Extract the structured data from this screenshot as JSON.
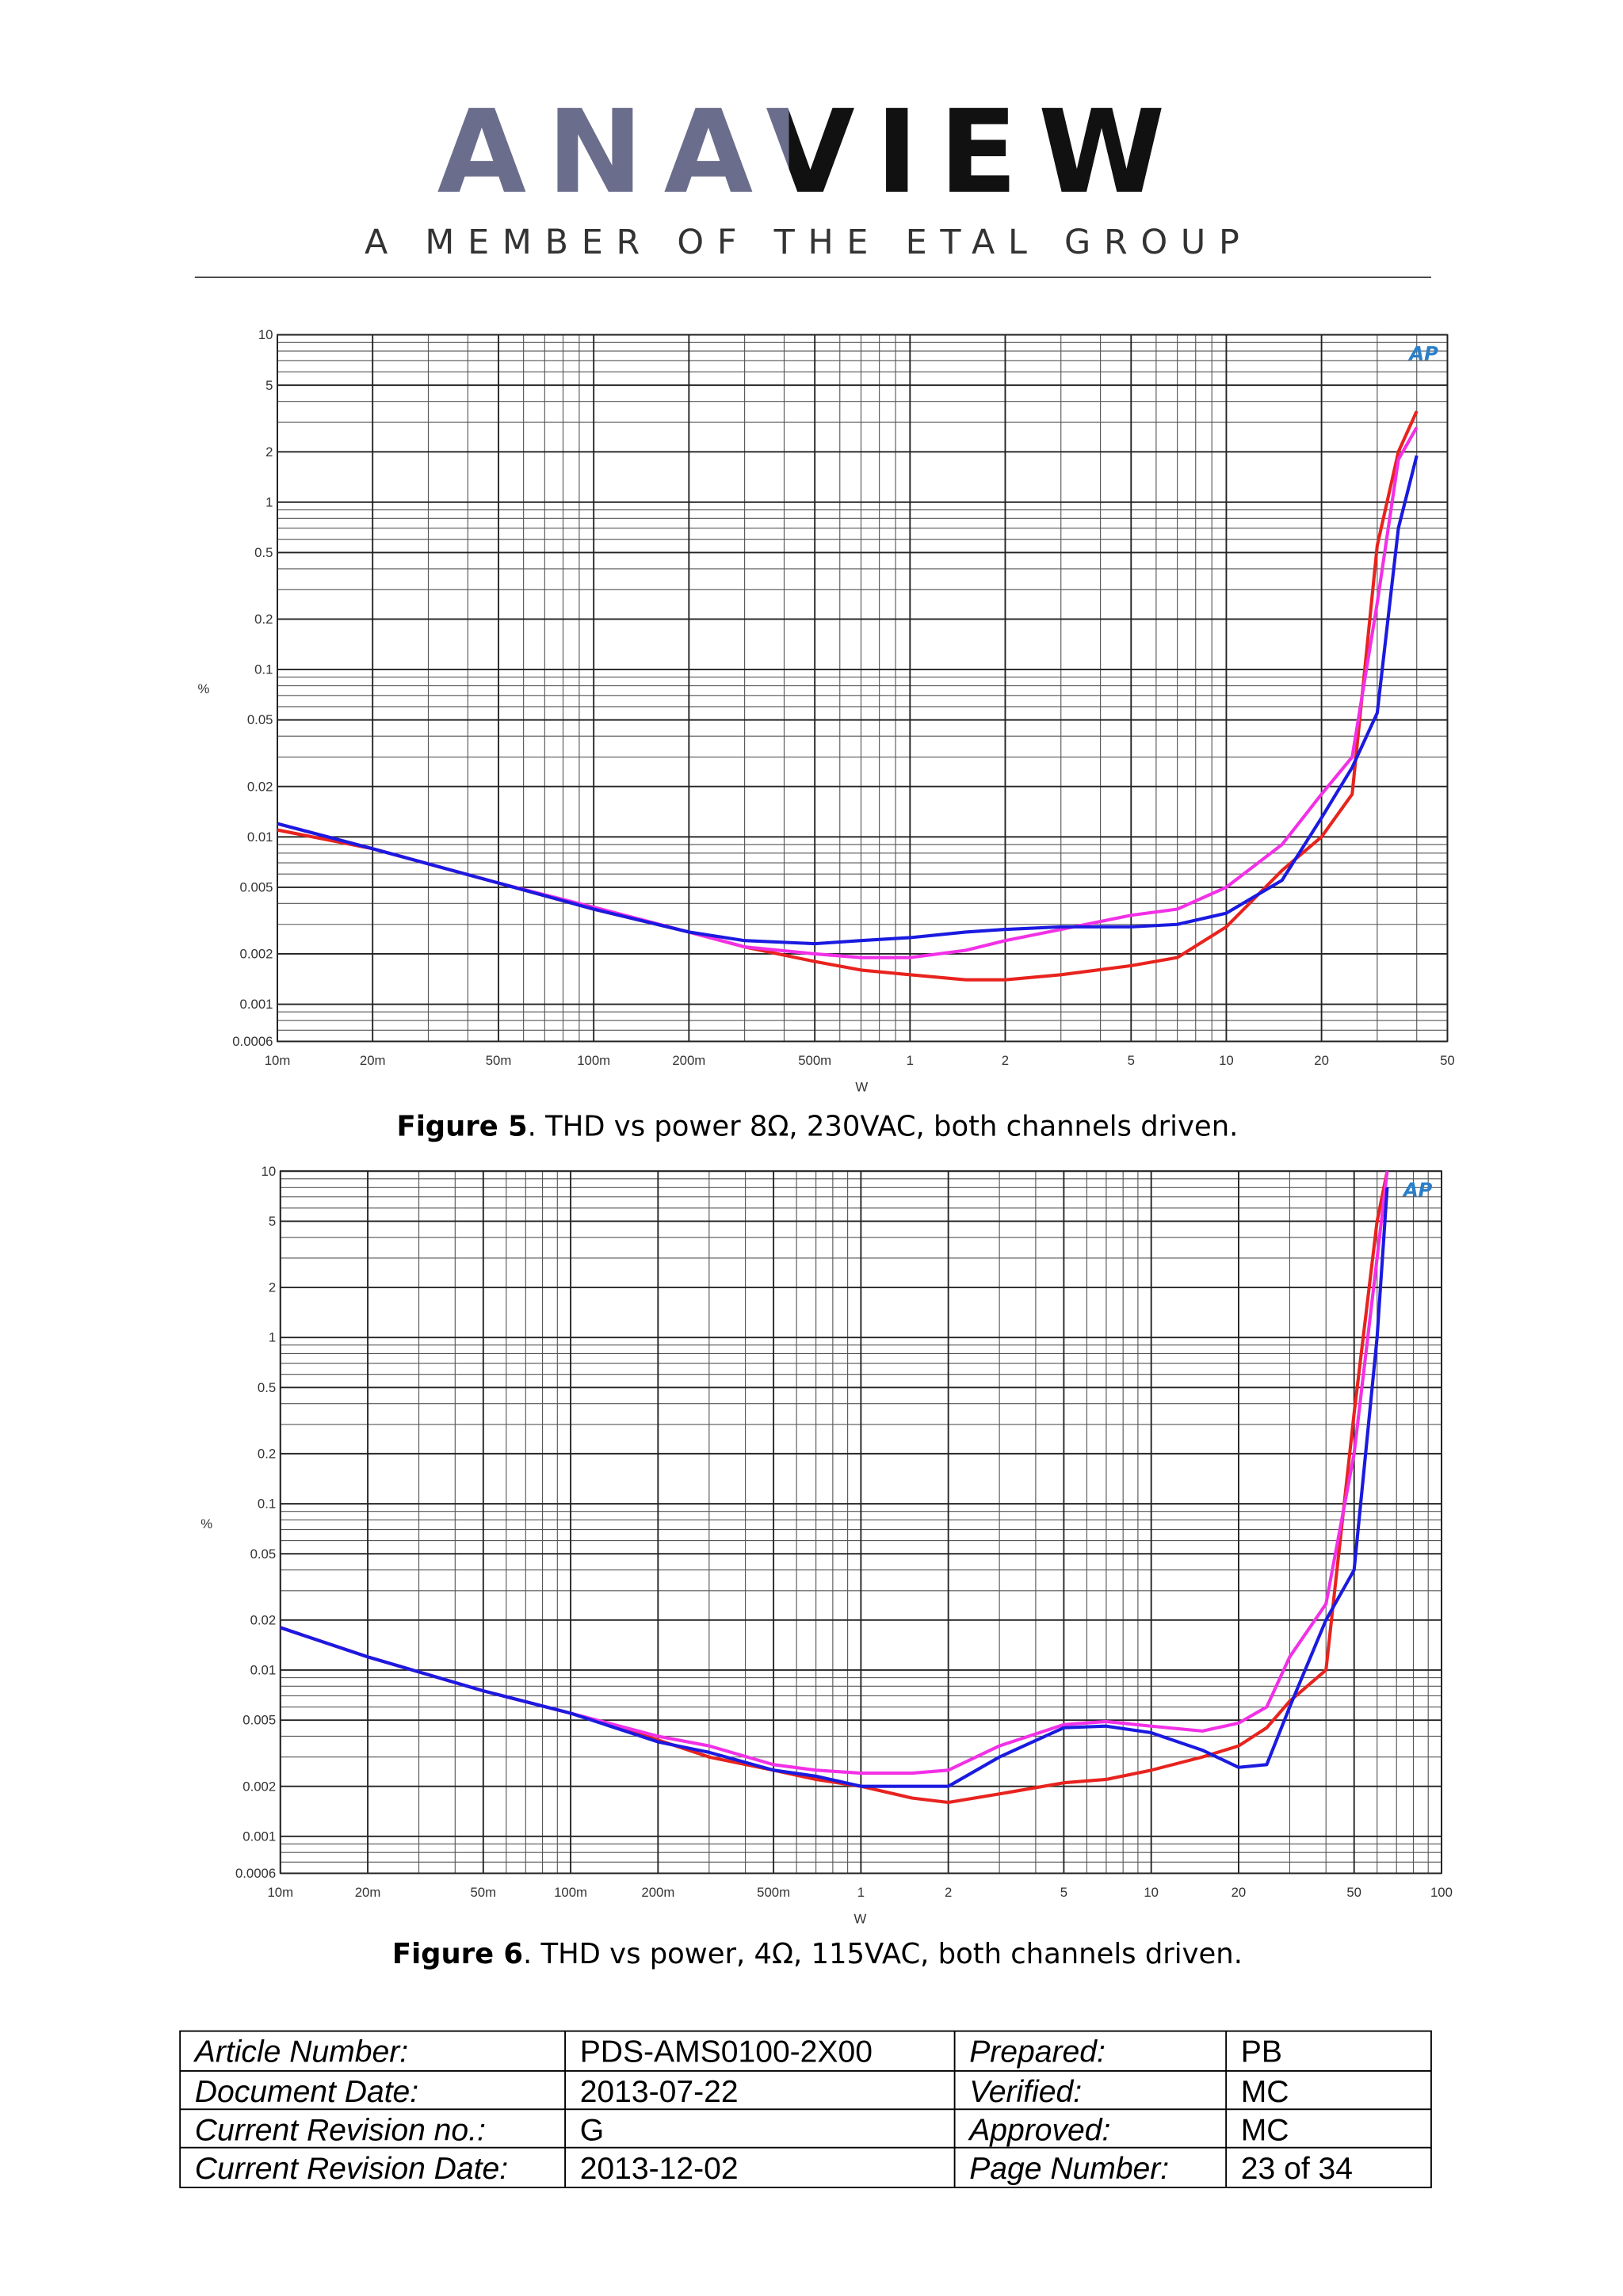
{
  "header": {
    "logo": "ANAVIEW",
    "tagline": "A MEMBER OF THE ETAL GROUP"
  },
  "chart_data": [
    {
      "type": "line",
      "watermark": "AP",
      "xlabel": "W",
      "ylabel": "%",
      "xscale": "log",
      "yscale": "log",
      "grid": true,
      "minor_grid": true,
      "xlim": [
        0.01,
        50
      ],
      "ylim": [
        0.0006,
        10
      ],
      "xticks": [
        {
          "value": 0.01,
          "label": "10m"
        },
        {
          "value": 0.02,
          "label": "20m"
        },
        {
          "value": 0.05,
          "label": "50m"
        },
        {
          "value": 0.1,
          "label": "100m"
        },
        {
          "value": 0.2,
          "label": "200m"
        },
        {
          "value": 0.5,
          "label": "500m"
        },
        1,
        2,
        5,
        10,
        20,
        50
      ],
      "yticks": [
        10,
        5,
        2,
        1,
        0.5,
        0.2,
        0.1,
        0.05,
        0.02,
        0.01,
        0.005,
        0.002,
        0.001,
        0.0006
      ],
      "x": [
        0.01,
        0.02,
        0.05,
        0.1,
        0.2,
        0.3,
        0.5,
        0.7,
        1,
        1.5,
        2,
        3,
        5,
        7,
        10,
        15,
        20,
        25,
        30,
        35,
        40
      ],
      "series": [
        {
          "color": "#e8231e",
          "values": [
            0.011,
            0.0085,
            0.0053,
            0.0037,
            0.0027,
            0.0022,
            0.0018,
            0.0016,
            0.0015,
            0.0014,
            0.0014,
            0.0015,
            0.0017,
            0.0019,
            0.0029,
            0.0063,
            0.01,
            0.018,
            0.55,
            2.0,
            3.5
          ]
        },
        {
          "color": "#f230e6",
          "values": [
            0.012,
            0.0085,
            0.0053,
            0.0038,
            0.0027,
            0.0022,
            0.002,
            0.0019,
            0.0019,
            0.0021,
            0.0024,
            0.0028,
            0.0034,
            0.0037,
            0.005,
            0.009,
            0.018,
            0.03,
            0.25,
            1.8,
            2.8
          ]
        },
        {
          "color": "#1a1ae0",
          "values": [
            0.012,
            0.0085,
            0.0053,
            0.0037,
            0.0027,
            0.0024,
            0.0023,
            0.0024,
            0.0025,
            0.0027,
            0.0028,
            0.0029,
            0.0029,
            0.003,
            0.0035,
            0.0055,
            0.013,
            0.026,
            0.055,
            0.7,
            1.9
          ]
        }
      ]
    },
    {
      "type": "line",
      "watermark": "AP",
      "xlabel": "W",
      "ylabel": "%",
      "xscale": "log",
      "yscale": "log",
      "grid": true,
      "minor_grid": true,
      "xlim": [
        0.01,
        100
      ],
      "ylim": [
        0.0006,
        10
      ],
      "xticks": [
        {
          "value": 0.01,
          "label": "10m"
        },
        {
          "value": 0.02,
          "label": "20m"
        },
        {
          "value": 0.05,
          "label": "50m"
        },
        {
          "value": 0.1,
          "label": "100m"
        },
        {
          "value": 0.2,
          "label": "200m"
        },
        {
          "value": 0.5,
          "label": "500m"
        },
        1,
        2,
        5,
        10,
        20,
        50,
        100
      ],
      "yticks": [
        10,
        5,
        2,
        1,
        0.5,
        0.2,
        0.1,
        0.05,
        0.02,
        0.01,
        0.005,
        0.002,
        0.001,
        0.0006
      ],
      "x": [
        0.01,
        0.02,
        0.05,
        0.1,
        0.2,
        0.3,
        0.5,
        0.7,
        1,
        1.5,
        2,
        3,
        5,
        7,
        10,
        15,
        20,
        25,
        30,
        40,
        50,
        60,
        65
      ],
      "series": [
        {
          "color": "#e8231e",
          "values": [
            0.018,
            0.012,
            0.0075,
            0.0055,
            0.0038,
            0.003,
            0.0025,
            0.0022,
            0.002,
            0.0017,
            0.0016,
            0.0018,
            0.0021,
            0.0022,
            0.0025,
            0.003,
            0.0035,
            0.0045,
            0.0065,
            0.01,
            0.35,
            5,
            10
          ]
        },
        {
          "color": "#f230e6",
          "values": [
            0.018,
            0.012,
            0.0075,
            0.0055,
            0.004,
            0.0035,
            0.0027,
            0.0025,
            0.0024,
            0.0024,
            0.0025,
            0.0035,
            0.0047,
            0.0049,
            0.0046,
            0.0043,
            0.0048,
            0.006,
            0.012,
            0.025,
            0.2,
            3,
            10
          ]
        },
        {
          "color": "#1a1ae0",
          "values": [
            0.018,
            0.012,
            0.0075,
            0.0055,
            0.0037,
            0.0032,
            0.0025,
            0.0023,
            0.002,
            0.002,
            0.002,
            0.003,
            0.0045,
            0.0046,
            0.0042,
            0.0033,
            0.0026,
            0.0027,
            0.006,
            0.02,
            0.04,
            1,
            8
          ]
        }
      ]
    }
  ],
  "captions": [
    {
      "label": "Figure 5",
      "text": ". THD vs power 8Ω, 230VAC, both channels driven."
    },
    {
      "label": "Figure 6",
      "text": ". THD vs power, 4Ω, 115VAC, both channels driven."
    }
  ],
  "table": {
    "rows": [
      [
        "Article Number:",
        "PDS-AMS0100-2X00",
        "Prepared:",
        "PB"
      ],
      [
        "Document Date:",
        "2013-07-22",
        "Verified:",
        "MC"
      ],
      [
        "Current Revision no.:",
        "G",
        "Approved:",
        "MC"
      ],
      [
        "Current Revision Date:",
        "2013-12-02",
        "Page Number:",
        "23 of 34"
      ]
    ]
  }
}
